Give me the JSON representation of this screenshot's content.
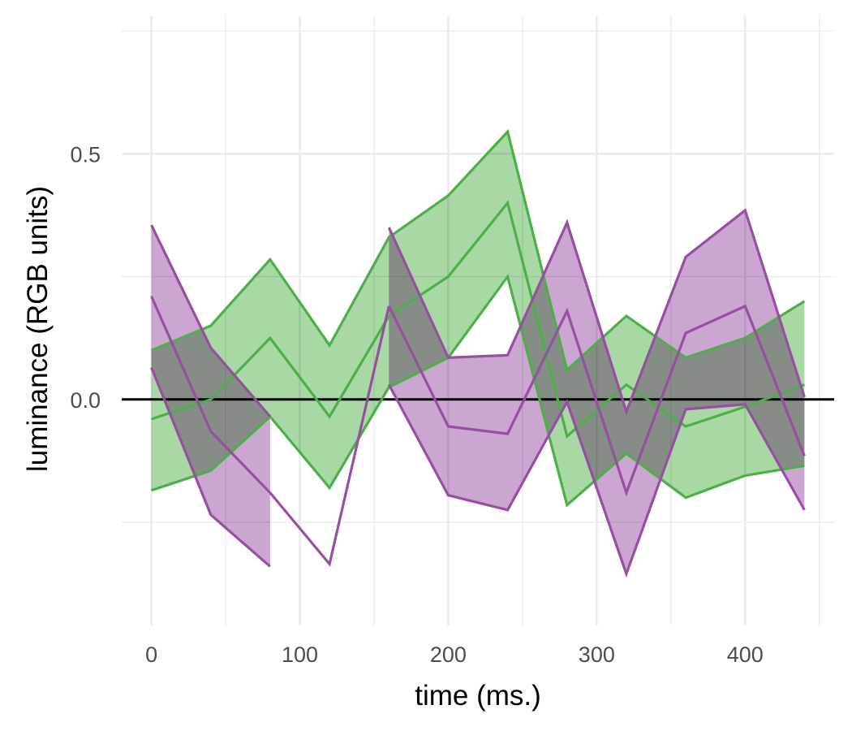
{
  "chart_data": {
    "type": "area",
    "xlabel": "time (ms.)",
    "ylabel": "luminance (RGB units)",
    "xlim": [
      -20,
      460
    ],
    "ylim": [
      -0.46,
      0.78
    ],
    "x_ticks": [
      0,
      100,
      200,
      300,
      400
    ],
    "x_tick_labels": [
      "0",
      "100",
      "200",
      "300",
      "400"
    ],
    "y_ticks": [
      0.0,
      0.5
    ],
    "y_tick_labels": [
      "0.0",
      "0.5"
    ],
    "x_minor_grid": [
      50,
      150,
      250,
      350,
      450
    ],
    "y_minor_grid": [
      -0.25,
      0.25,
      0.75
    ],
    "grid": true,
    "legend": "none",
    "reference_line": {
      "y": 0,
      "color": "#000000"
    },
    "series": [
      {
        "color": "#4daf4a",
        "fill": "#a8d8a4",
        "ribbons": [
          {
            "x": [
              0,
              40,
              80,
              120,
              160,
              200,
              240,
              280,
              320,
              360,
              400,
              440
            ],
            "mean": [
              -0.04,
              0.0,
              0.125,
              -0.035,
              0.17,
              0.25,
              0.4,
              -0.075,
              0.03,
              -0.055,
              -0.015,
              0.03
            ],
            "lower": [
              -0.185,
              -0.145,
              -0.035,
              -0.18,
              0.025,
              0.085,
              0.25,
              -0.215,
              -0.11,
              -0.2,
              -0.155,
              -0.135
            ],
            "upper": [
              0.1,
              0.15,
              0.285,
              0.11,
              0.33,
              0.415,
              0.545,
              0.06,
              0.17,
              0.085,
              0.125,
              0.2
            ]
          }
        ]
      },
      {
        "color": "#984ea3",
        "fill": "#caa6d1",
        "ribbons": [
          {
            "x": [
              0,
              40,
              80
            ],
            "mean": [
              0.21,
              -0.065,
              -0.19
            ],
            "lower": [
              0.065,
              -0.235,
              -0.34
            ],
            "upper": [
              0.355,
              0.105,
              -0.035
            ]
          },
          {
            "x": [
              160,
              200,
              240,
              280,
              320,
              360,
              400,
              440
            ],
            "mean": [
              0.19,
              -0.055,
              -0.07,
              0.18,
              -0.19,
              0.135,
              0.19,
              -0.115
            ],
            "lower": [
              0.03,
              -0.195,
              -0.225,
              -0.005,
              -0.355,
              -0.02,
              -0.01,
              -0.225
            ],
            "upper": [
              0.35,
              0.085,
              0.09,
              0.36,
              -0.025,
              0.29,
              0.385,
              0.005
            ]
          }
        ],
        "extra_lines": [
          {
            "x": [
              80,
              120,
              160
            ],
            "y": [
              -0.19,
              -0.335,
              0.19
            ]
          }
        ]
      }
    ]
  }
}
